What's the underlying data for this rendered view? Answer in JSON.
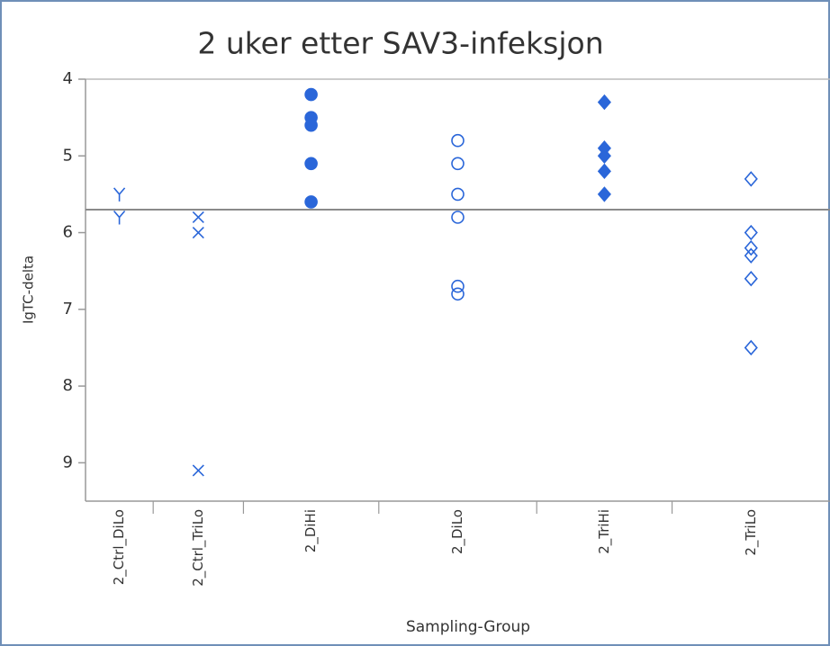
{
  "chart_data": {
    "type": "scatter",
    "title": "2 uker etter SAV3-infeksjon",
    "x_label": "Sampling-Group",
    "y_label": "IgTC-delta",
    "categories": [
      "2_Ctrl_DiLo",
      "2_Ctrl_TriLo",
      "2_DiHi",
      "2_DiLo",
      "2_TriHi",
      "2_TriLo"
    ],
    "markers": [
      "Y",
      "x",
      "circle",
      "circle-open",
      "diamond",
      "diamond-open"
    ],
    "color": "#2a66d9",
    "values": [
      [
        5.5,
        5.8
      ],
      [
        5.8,
        6.0,
        9.1
      ],
      [
        4.2,
        4.5,
        4.6,
        5.1,
        5.6
      ],
      [
        4.8,
        5.1,
        5.5,
        5.8,
        6.7,
        6.8
      ],
      [
        4.3,
        4.9,
        5.0,
        5.2,
        5.5
      ],
      [
        5.3,
        6.0,
        6.2,
        6.3,
        6.6,
        7.5
      ]
    ],
    "ylim": [
      9.5,
      4
    ],
    "yticks": [
      4,
      5,
      6,
      7,
      8,
      9
    ],
    "reference_line": 5.7
  }
}
